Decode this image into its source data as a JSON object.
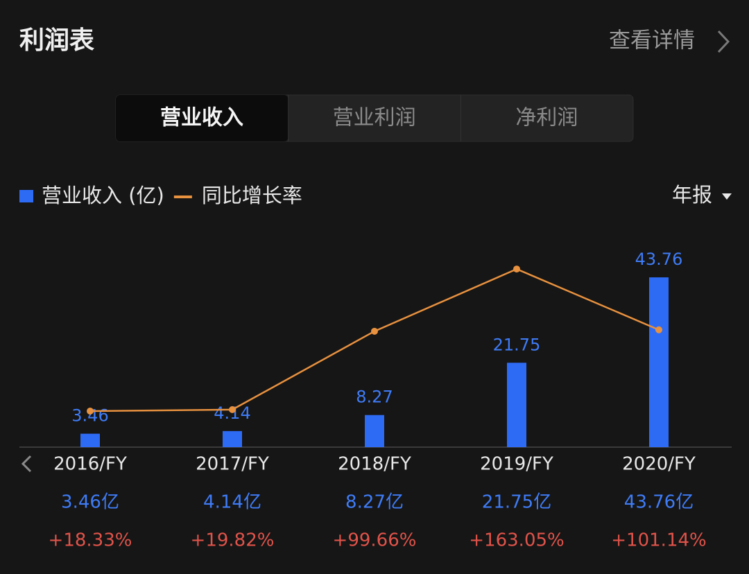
{
  "header": {
    "title": "利润表",
    "link": "查看详情"
  },
  "tabs": [
    "营业收入",
    "营业利润",
    "净利润"
  ],
  "period": "年报",
  "chart_data": {
    "type": "bar",
    "categories": [
      "2016/FY",
      "2017/FY",
      "2018/FY",
      "2019/FY",
      "2020/FY"
    ],
    "ylim": [
      0,
      54.5
    ],
    "y2lim": [
      -18.4,
      197
    ],
    "series": [
      {
        "name": "营业收入 (亿)",
        "color": "#2e6bf5",
        "type": "bar",
        "values": [
          3.46,
          4.14,
          8.27,
          21.75,
          43.76
        ],
        "value_labels": [
          "3.46亿",
          "4.14亿",
          "8.27亿",
          "21.75亿",
          "43.76亿"
        ]
      },
      {
        "name": "同比增长率",
        "color": "#e8913f",
        "type": "line",
        "axis": "y2",
        "values": [
          18.33,
          19.82,
          99.66,
          163.05,
          101.14
        ],
        "value_labels": [
          "+18.33%",
          "+19.82%",
          "+99.66%",
          "+163.05%",
          "+101.14%"
        ]
      }
    ]
  }
}
